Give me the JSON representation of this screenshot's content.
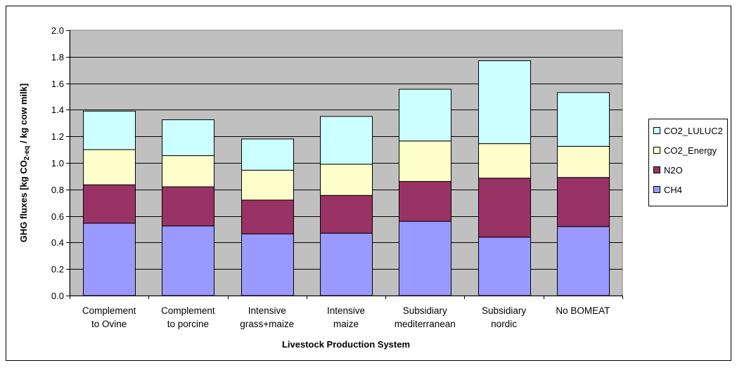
{
  "chart_data": {
    "type": "bar",
    "stacked": true,
    "categories": [
      [
        "Complement",
        "to Ovine"
      ],
      [
        "Complement",
        "to porcine"
      ],
      [
        "Intensive",
        "grass+maize"
      ],
      [
        "Intensive",
        "maize"
      ],
      [
        "Subsidiary",
        "mediterranean"
      ],
      [
        "Subsidiary",
        "nordic"
      ],
      [
        "No BOMEAT"
      ]
    ],
    "series": [
      {
        "name": "CH4",
        "color": "#9999ff",
        "values": [
          0.545,
          0.525,
          0.465,
          0.47,
          0.56,
          0.44,
          0.52
        ]
      },
      {
        "name": "N2O",
        "color": "#993366",
        "values": [
          0.29,
          0.295,
          0.255,
          0.285,
          0.3,
          0.445,
          0.37
        ]
      },
      {
        "name": "CO2_Energy",
        "color": "#ffffcc",
        "values": [
          0.265,
          0.235,
          0.225,
          0.235,
          0.305,
          0.26,
          0.235
        ]
      },
      {
        "name": "CO2_LULUC2",
        "color": "#ccffff",
        "values": [
          0.29,
          0.27,
          0.235,
          0.36,
          0.39,
          0.625,
          0.405
        ]
      }
    ],
    "xlabel": "Livestock Production System",
    "ylabel": "GHG fluxes [kg CO2-eq / kg cow milk]",
    "ylim": [
      0,
      2.0
    ],
    "yticks": [
      "0.0",
      "0.2",
      "0.4",
      "0.6",
      "0.8",
      "1.0",
      "1.2",
      "1.4",
      "1.6",
      "1.8",
      "2.0"
    ],
    "grid": true,
    "legend_position": "right",
    "plot_background": "#c0c0c0"
  }
}
